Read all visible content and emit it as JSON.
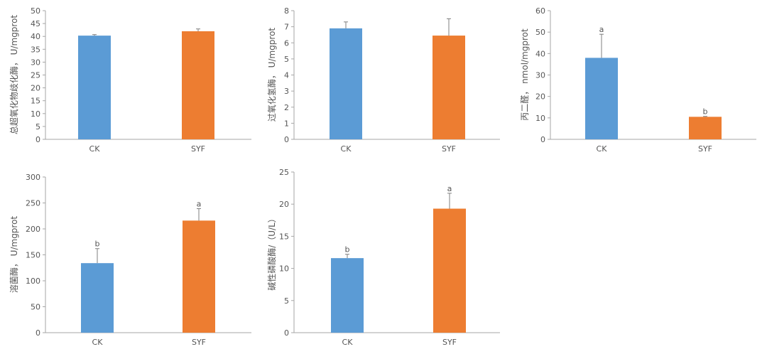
{
  "colors": {
    "CK": "#5b9bd5",
    "SYF": "#ed7d31",
    "axis": "#a6a6a6",
    "text": "#555555",
    "error": "#7f7f7f"
  },
  "chart_data": [
    {
      "type": "bar",
      "categories": [
        "CK",
        "SYF"
      ],
      "values": [
        40.3,
        42.0
      ],
      "errors": [
        0.4,
        0.9
      ],
      "significance": [
        "",
        ""
      ],
      "ylabel": "总超氧化物歧化酶，  U/mgprot",
      "ylim": [
        0,
        50
      ],
      "yticks": [
        0,
        5,
        10,
        15,
        20,
        25,
        30,
        35,
        40,
        45,
        50
      ],
      "title": "",
      "xlabel": "",
      "grid": false
    },
    {
      "type": "bar",
      "categories": [
        "CK",
        "SYF"
      ],
      "values": [
        6.9,
        6.45
      ],
      "errors": [
        0.4,
        1.05
      ],
      "significance": [
        "",
        ""
      ],
      "ylabel": "过氧化氢酶，  U/mgprot",
      "ylim": [
        0,
        8
      ],
      "yticks": [
        0,
        1,
        2,
        3,
        4,
        5,
        6,
        7,
        8
      ],
      "title": "",
      "xlabel": "",
      "grid": false
    },
    {
      "type": "bar",
      "categories": [
        "CK",
        "SYF"
      ],
      "values": [
        38.0,
        10.5
      ],
      "errors": [
        11.0,
        0.2
      ],
      "significance": [
        "a",
        "b"
      ],
      "ylabel": "丙二醛，  nmol/mgprot",
      "ylim": [
        0,
        60
      ],
      "yticks": [
        0,
        10,
        20,
        30,
        40,
        50,
        60
      ],
      "title": "",
      "xlabel": "",
      "grid": false
    },
    {
      "type": "bar",
      "categories": [
        "CK",
        "SYF"
      ],
      "values": [
        134,
        216
      ],
      "errors": [
        28,
        23
      ],
      "significance": [
        "b",
        "a"
      ],
      "ylabel": "溶菌酶，  U/mgprot",
      "ylim": [
        0,
        300
      ],
      "yticks": [
        0,
        50,
        100,
        150,
        200,
        250,
        300
      ],
      "title": "",
      "xlabel": "",
      "grid": false
    },
    {
      "type": "bar",
      "categories": [
        "CK",
        "SYF"
      ],
      "values": [
        11.6,
        19.3
      ],
      "errors": [
        0.6,
        2.4
      ],
      "significance": [
        "b",
        "a"
      ],
      "ylabel": "碱性磷酸酶/（U/L）",
      "ylim": [
        0,
        25
      ],
      "yticks": [
        0,
        5,
        10,
        15,
        20,
        25
      ],
      "title": "",
      "xlabel": "",
      "grid": false
    }
  ]
}
